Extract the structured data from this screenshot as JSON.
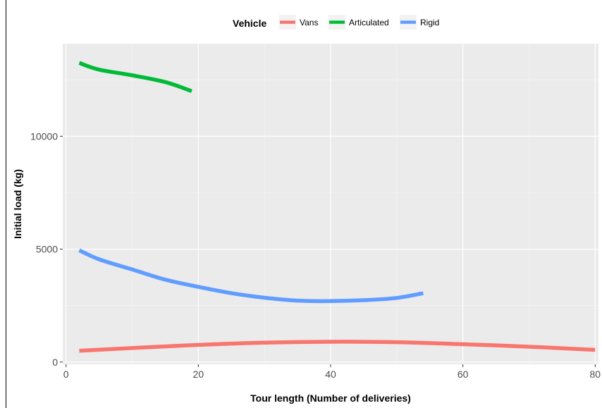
{
  "chart_data": {
    "type": "line",
    "title": "",
    "xlabel": "Tour length (Number of deliveries)",
    "ylabel": "Initial load (kg)",
    "xlim": [
      -0.5,
      80.5
    ],
    "ylim": [
      -100,
      14100
    ],
    "x_ticks": [
      0,
      20,
      40,
      60,
      80
    ],
    "y_ticks": [
      0,
      5000,
      10000
    ],
    "grid": true,
    "legend": {
      "title": "Vehicle",
      "position": "top"
    },
    "series": [
      {
        "name": "Vans",
        "color": "#F8766D",
        "x": [
          2,
          10,
          20,
          30,
          40,
          50,
          60,
          70,
          80
        ],
        "y": [
          500,
          620,
          760,
          860,
          900,
          880,
          790,
          680,
          540
        ]
      },
      {
        "name": "Articulated",
        "color": "#00BA38",
        "x": [
          2,
          5,
          10,
          15,
          19
        ],
        "y": [
          13250,
          12950,
          12700,
          12400,
          12000
        ]
      },
      {
        "name": "Rigid",
        "color": "#619CFF",
        "x": [
          2,
          5,
          10,
          15,
          20,
          25,
          30,
          35,
          40,
          45,
          50,
          54
        ],
        "y": [
          4950,
          4550,
          4100,
          3650,
          3330,
          3050,
          2850,
          2720,
          2700,
          2740,
          2840,
          3050
        ]
      }
    ]
  }
}
